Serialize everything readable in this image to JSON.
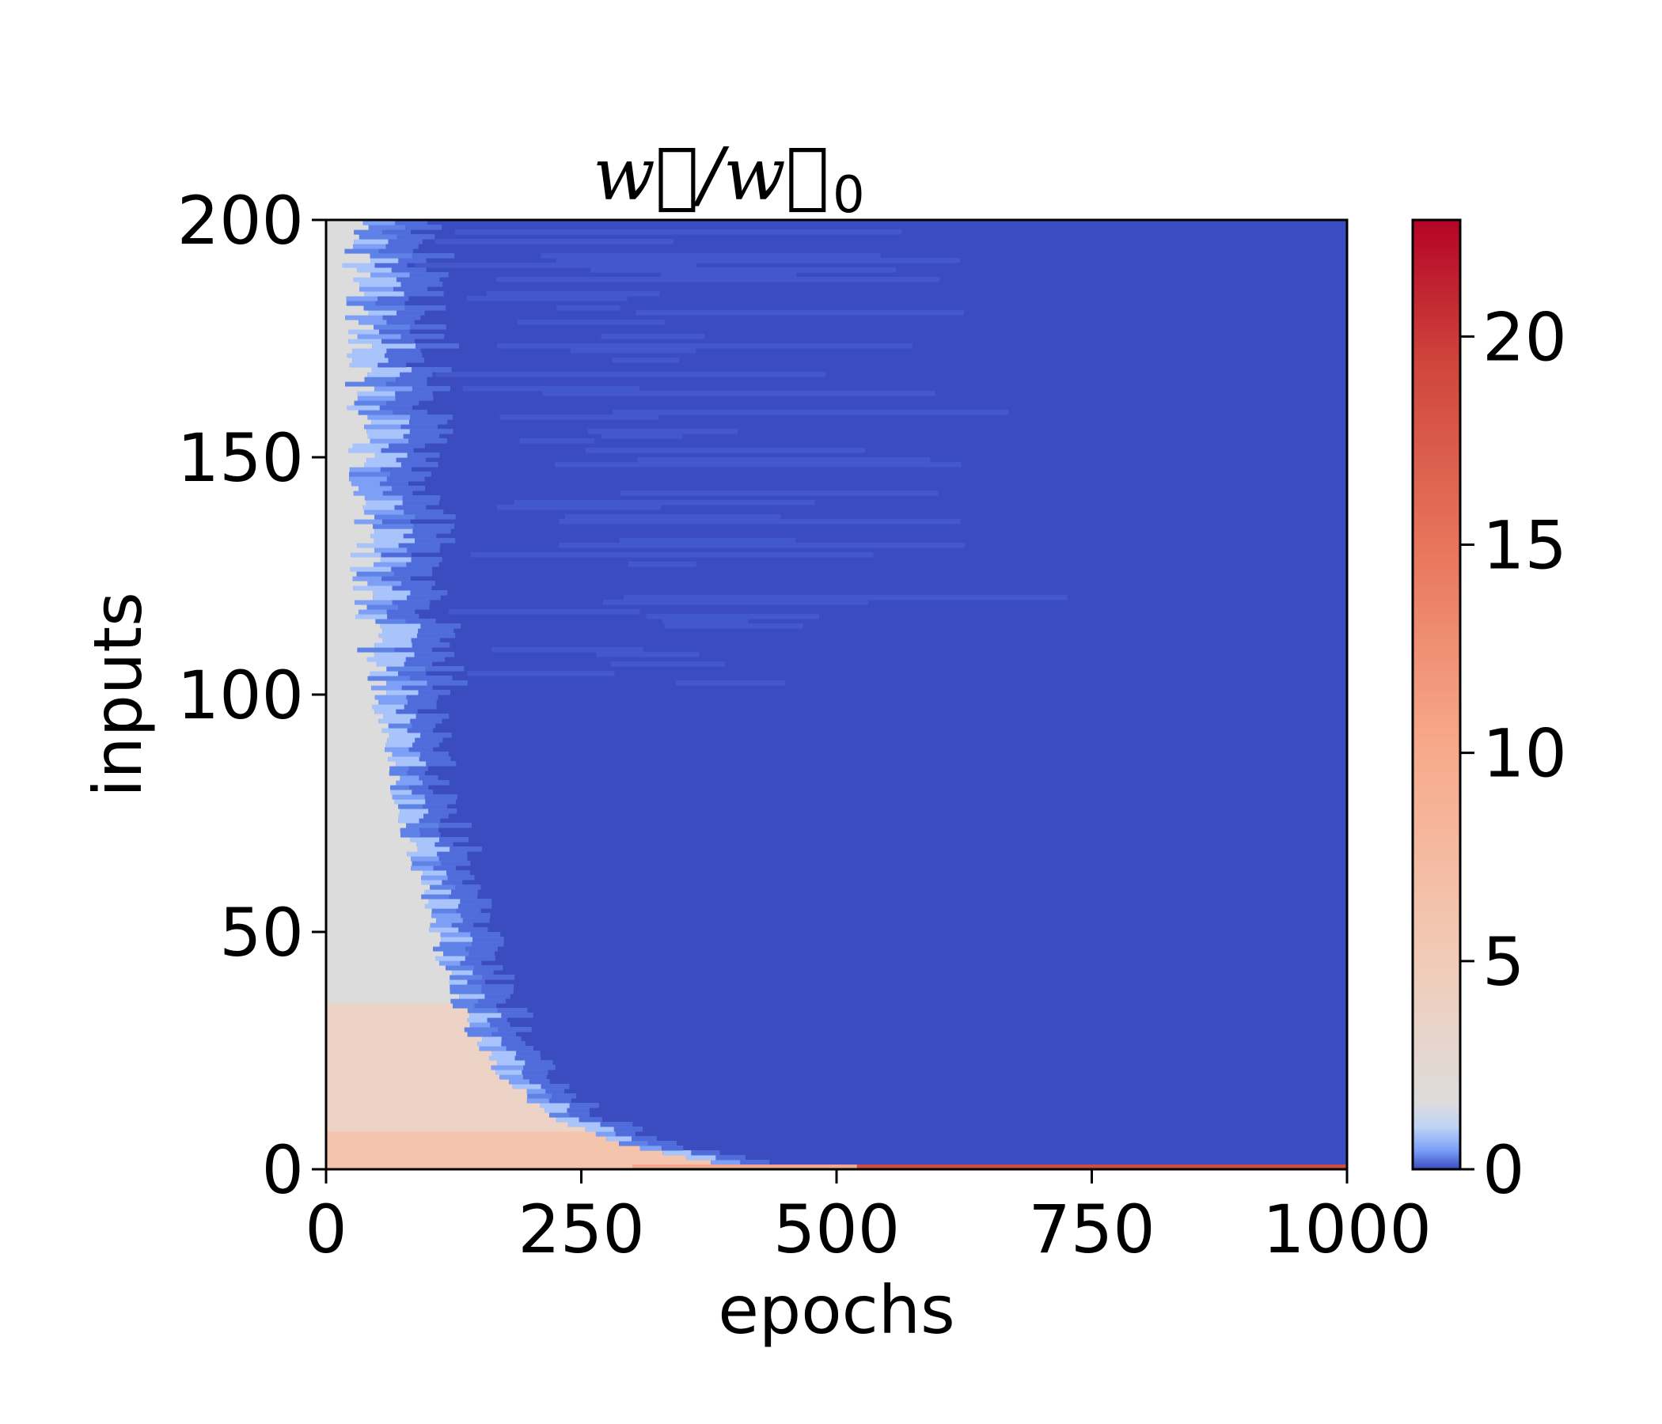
{
  "chart_data": {
    "type": "heatmap",
    "title": {
      "main": "w⃗/w⃗",
      "subscript": "0"
    },
    "xlabel": "epochs",
    "ylabel": "inputs",
    "xlim": [
      0,
      1000
    ],
    "ylim": [
      0,
      200
    ],
    "xticks": [
      {
        "value": 0,
        "label": "0"
      },
      {
        "value": 250,
        "label": "250"
      },
      {
        "value": 500,
        "label": "500"
      },
      {
        "value": 750,
        "label": "750"
      },
      {
        "value": 1000,
        "label": "1000"
      }
    ],
    "yticks": [
      {
        "value": 0,
        "label": "0"
      },
      {
        "value": 50,
        "label": "50"
      },
      {
        "value": 100,
        "label": "100"
      },
      {
        "value": 150,
        "label": "150"
      },
      {
        "value": 200,
        "label": "200"
      }
    ],
    "colorbar": {
      "colormap": "coolwarm",
      "range": [
        0,
        22.8
      ],
      "ticks": [
        {
          "value": 0,
          "label": "0"
        },
        {
          "value": 5,
          "label": "5"
        },
        {
          "value": 10,
          "label": "10"
        },
        {
          "value": 15,
          "label": "15"
        },
        {
          "value": 20,
          "label": "20"
        }
      ]
    },
    "description_values": {
      "early_region_value": 1.5,
      "late_region_value": 0,
      "bottom_row_late_value": 22
    },
    "transition_epoch_by_input": [
      {
        "input": 0,
        "epoch": 420
      },
      {
        "input": 5,
        "epoch": 290
      },
      {
        "input": 10,
        "epoch": 230
      },
      {
        "input": 20,
        "epoch": 170
      },
      {
        "input": 30,
        "epoch": 140
      },
      {
        "input": 40,
        "epoch": 120
      },
      {
        "input": 50,
        "epoch": 105
      },
      {
        "input": 60,
        "epoch": 95
      },
      {
        "input": 70,
        "epoch": 80
      },
      {
        "input": 80,
        "epoch": 68
      },
      {
        "input": 90,
        "epoch": 58
      },
      {
        "input": 100,
        "epoch": 48
      },
      {
        "input": 120,
        "epoch": 40
      },
      {
        "input": 150,
        "epoch": 34
      },
      {
        "input": 200,
        "epoch": 30
      }
    ],
    "colors": {
      "cold": "#3b4cc0",
      "neutral": "#dddcdc",
      "warm": "#b40426"
    }
  }
}
